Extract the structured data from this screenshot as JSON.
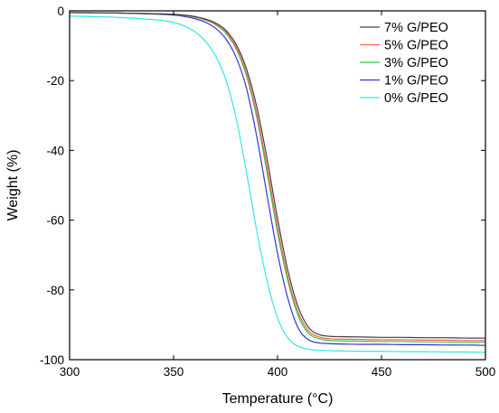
{
  "chart_data": {
    "type": "line",
    "title": "",
    "xlabel": "Temperature (°C)",
    "ylabel": "Weight (%)",
    "xlim": [
      300,
      500
    ],
    "ylim": [
      -100,
      0
    ],
    "xticks": [
      "300",
      "350",
      "400",
      "450",
      "500"
    ],
    "yticks": [
      "0",
      "-20",
      "-40",
      "-60",
      "-80",
      "-100"
    ],
    "grid": false,
    "legend_position": "top-right",
    "x": [
      300,
      320,
      340,
      350,
      355,
      360,
      365,
      370,
      375,
      380,
      385,
      390,
      395,
      400,
      405,
      410,
      415,
      420,
      425,
      430,
      440,
      450,
      460,
      470,
      480,
      490,
      500
    ],
    "series": [
      {
        "name": "7% G/PEO",
        "color": "#404040",
        "values": [
          -0.5,
          -0.6,
          -0.8,
          -1.0,
          -1.2,
          -1.6,
          -2.3,
          -3.4,
          -5.5,
          -9.5,
          -16.5,
          -27.5,
          -42.5,
          -59.5,
          -74.5,
          -85.0,
          -90.8,
          -92.8,
          -93.3,
          -93.4,
          -93.5,
          -93.6,
          -93.6,
          -93.7,
          -93.7,
          -93.8,
          -93.8
        ]
      },
      {
        "name": "5% G/PEO",
        "color": "#ff5a5a",
        "values": [
          -0.5,
          -0.6,
          -0.8,
          -1.0,
          -1.3,
          -1.7,
          -2.5,
          -3.7,
          -6.0,
          -10.3,
          -17.8,
          -29.5,
          -45.0,
          -62.0,
          -76.5,
          -86.5,
          -91.8,
          -93.5,
          -94.0,
          -94.1,
          -94.2,
          -94.3,
          -94.3,
          -94.4,
          -94.4,
          -94.5,
          -94.5
        ]
      },
      {
        "name": "3% G/PEO",
        "color": "#33cc33",
        "values": [
          -0.5,
          -0.6,
          -0.8,
          -1.0,
          -1.3,
          -1.8,
          -2.6,
          -3.9,
          -6.3,
          -10.8,
          -18.5,
          -30.5,
          -46.5,
          -63.5,
          -77.5,
          -87.5,
          -92.5,
          -94.0,
          -94.5,
          -94.6,
          -94.7,
          -94.8,
          -94.8,
          -94.9,
          -94.9,
          -95.0,
          -95.0
        ]
      },
      {
        "name": "1% G/PEO",
        "color": "#3333dd",
        "values": [
          -0.5,
          -0.6,
          -0.9,
          -1.2,
          -1.6,
          -2.2,
          -3.2,
          -4.9,
          -7.9,
          -13.2,
          -22.0,
          -36.0,
          -53.0,
          -69.5,
          -82.5,
          -91.0,
          -94.3,
          -95.2,
          -95.4,
          -95.5,
          -95.6,
          -95.6,
          -95.7,
          -95.7,
          -95.8,
          -95.8,
          -95.9
        ]
      },
      {
        "name": "0% G/PEO",
        "color": "#33e6e6",
        "values": [
          -1.5,
          -1.8,
          -2.5,
          -3.3,
          -4.3,
          -5.9,
          -8.5,
          -12.7,
          -19.5,
          -30.5,
          -46.0,
          -63.0,
          -77.5,
          -88.0,
          -93.8,
          -96.2,
          -97.0,
          -97.3,
          -97.4,
          -97.5,
          -97.6,
          -97.6,
          -97.7,
          -97.7,
          -97.8,
          -97.8,
          -97.9
        ]
      }
    ]
  }
}
